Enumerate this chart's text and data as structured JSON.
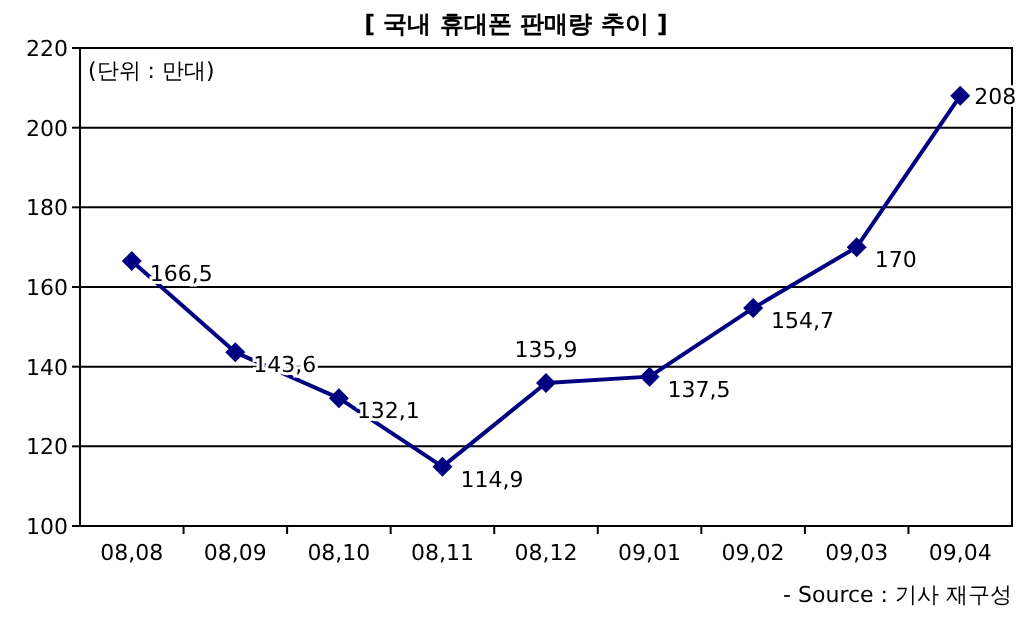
{
  "chart_data": {
    "type": "line",
    "title": "[ 국내 휴대폰 판매량 추이 ]",
    "categories": [
      "08,08",
      "08,09",
      "08,10",
      "08,11",
      "08,12",
      "09,01",
      "09,02",
      "09,03",
      "09,04"
    ],
    "values": [
      166.5,
      143.6,
      132.1,
      114.9,
      135.9,
      137.5,
      154.7,
      170,
      208
    ],
    "value_labels": [
      "166,5",
      "143,6",
      "132,1",
      "114,9",
      "135,9",
      "137,5",
      "154,7",
      "170",
      "208"
    ],
    "color": "#000080",
    "marker": "diamond",
    "line_style": "solid",
    "grid": "y",
    "ylim": [
      100,
      220
    ],
    "yticks": [
      100,
      120,
      140,
      160,
      180,
      200,
      220
    ],
    "annotations": [
      "(단위 : 만대)",
      "- Source : 기사 재구성"
    ]
  }
}
